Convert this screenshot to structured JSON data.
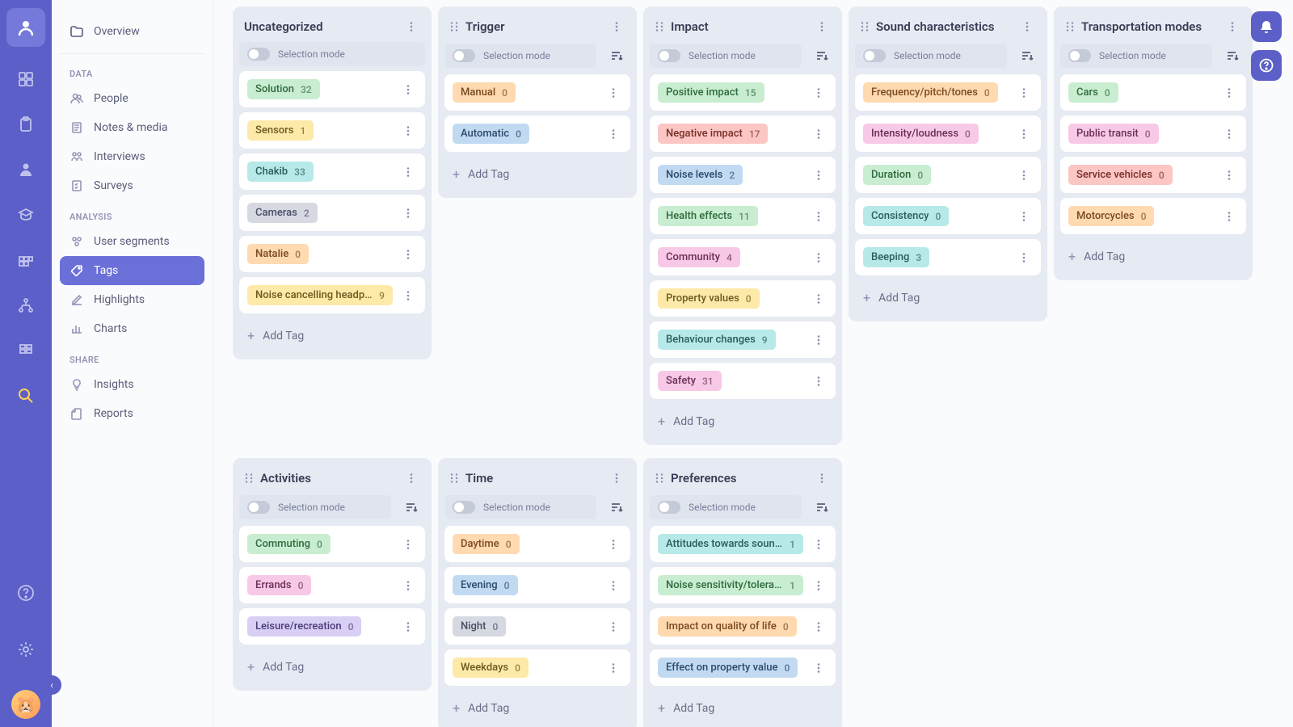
{
  "colors": {
    "rail_bg": "#5b5fc7",
    "active_item": "#6b6fd8",
    "column_bg": "#e6eaf2",
    "card_bg": "#ffffff",
    "text_primary": "#3a3d56",
    "text_muted": "#7a7d9a"
  },
  "sidebar": {
    "overview": "Overview",
    "sections": [
      {
        "title": "DATA",
        "items": [
          {
            "icon": "people",
            "label": "People"
          },
          {
            "icon": "notes",
            "label": "Notes & media"
          },
          {
            "icon": "interviews",
            "label": "Interviews"
          },
          {
            "icon": "surveys",
            "label": "Surveys"
          }
        ]
      },
      {
        "title": "ANALYSIS",
        "items": [
          {
            "icon": "segments",
            "label": "User segments"
          },
          {
            "icon": "tags",
            "label": "Tags",
            "active": true
          },
          {
            "icon": "highlights",
            "label": "Highlights"
          },
          {
            "icon": "charts",
            "label": "Charts"
          }
        ]
      },
      {
        "title": "SHARE",
        "items": [
          {
            "icon": "insights",
            "label": "Insights"
          },
          {
            "icon": "reports",
            "label": "Reports"
          }
        ]
      }
    ]
  },
  "selection_mode_label": "Selection mode",
  "add_tag_label": "Add Tag",
  "tag_colors": {
    "green": {
      "bg": "#c9edd0",
      "fg": "#2f6b3f"
    },
    "yellow": {
      "bg": "#fde9a8",
      "fg": "#6b5a1f"
    },
    "teal": {
      "bg": "#b6e9e8",
      "fg": "#2a5e5d"
    },
    "gray": {
      "bg": "#d6d9e1",
      "fg": "#4a4d66"
    },
    "orange": {
      "bg": "#ffd9b0",
      "fg": "#7a4a1e"
    },
    "red": {
      "bg": "#fbc6c3",
      "fg": "#7a2e2a"
    },
    "blue": {
      "bg": "#c1daf2",
      "fg": "#2b4a6b"
    },
    "pink": {
      "bg": "#f7c9e6",
      "fg": "#6b2f58"
    },
    "purple": {
      "bg": "#d9cff4",
      "fg": "#4a3b7a"
    }
  },
  "columns": [
    {
      "title": "Uncategorized",
      "show_sort": false,
      "tags": [
        {
          "name": "Solution",
          "count": 32,
          "color": "green"
        },
        {
          "name": "Sensors",
          "count": 1,
          "color": "yellow"
        },
        {
          "name": "Chakib",
          "count": 33,
          "color": "teal"
        },
        {
          "name": "Cameras",
          "count": 2,
          "color": "gray"
        },
        {
          "name": "Natalie",
          "count": 0,
          "color": "orange"
        },
        {
          "name": "Noise cancelling headph…",
          "count": 9,
          "color": "yellow"
        }
      ]
    },
    {
      "title": "Trigger",
      "show_sort": true,
      "tags": [
        {
          "name": "Manual",
          "count": 0,
          "color": "orange"
        },
        {
          "name": "Automatic",
          "count": 0,
          "color": "blue"
        }
      ]
    },
    {
      "title": "Impact",
      "show_sort": true,
      "tags": [
        {
          "name": "Positive impact",
          "count": 15,
          "color": "green"
        },
        {
          "name": "Negative impact",
          "count": 17,
          "color": "red"
        },
        {
          "name": "Noise levels",
          "count": 2,
          "color": "blue"
        },
        {
          "name": "Health effects",
          "count": 11,
          "color": "green"
        },
        {
          "name": "Community",
          "count": 4,
          "color": "pink"
        },
        {
          "name": "Property values",
          "count": 0,
          "color": "yellow"
        },
        {
          "name": "Behaviour changes",
          "count": 9,
          "color": "teal"
        },
        {
          "name": "Safety",
          "count": 31,
          "color": "pink"
        }
      ]
    },
    {
      "title": "Sound characteristics",
      "show_sort": true,
      "tags": [
        {
          "name": "Frequency/pitch/tones",
          "count": 0,
          "color": "orange"
        },
        {
          "name": "Intensity/loudness",
          "count": 0,
          "color": "pink"
        },
        {
          "name": "Duration",
          "count": 0,
          "color": "green"
        },
        {
          "name": "Consistency",
          "count": 0,
          "color": "teal"
        },
        {
          "name": "Beeping",
          "count": 3,
          "color": "teal"
        }
      ]
    },
    {
      "title": "Transportation modes",
      "show_sort": true,
      "tags": [
        {
          "name": "Cars",
          "count": 0,
          "color": "green"
        },
        {
          "name": "Public transit",
          "count": 0,
          "color": "pink"
        },
        {
          "name": "Service vehicles",
          "count": 0,
          "color": "red"
        },
        {
          "name": "Motorcycles",
          "count": 0,
          "color": "orange"
        }
      ]
    },
    {
      "title": "Activities",
      "show_sort": true,
      "tags": [
        {
          "name": "Commuting",
          "count": 0,
          "color": "green"
        },
        {
          "name": "Errands",
          "count": 0,
          "color": "pink"
        },
        {
          "name": "Leisure/recreation",
          "count": 0,
          "color": "purple"
        }
      ]
    },
    {
      "title": "Time",
      "show_sort": true,
      "tags": [
        {
          "name": "Daytime",
          "count": 0,
          "color": "orange"
        },
        {
          "name": "Evening",
          "count": 0,
          "color": "blue"
        },
        {
          "name": "Night",
          "count": 0,
          "color": "gray"
        },
        {
          "name": "Weekdays",
          "count": 0,
          "color": "yellow"
        }
      ]
    },
    {
      "title": "Preferences",
      "show_sort": true,
      "tags": [
        {
          "name": "Attitudes towards sounds",
          "count": 1,
          "color": "teal"
        },
        {
          "name": "Noise sensitivity/tolerance",
          "count": 1,
          "color": "green"
        },
        {
          "name": "Impact on quality of life",
          "count": 0,
          "color": "orange"
        },
        {
          "name": "Effect on property value",
          "count": 0,
          "color": "blue"
        }
      ]
    }
  ]
}
